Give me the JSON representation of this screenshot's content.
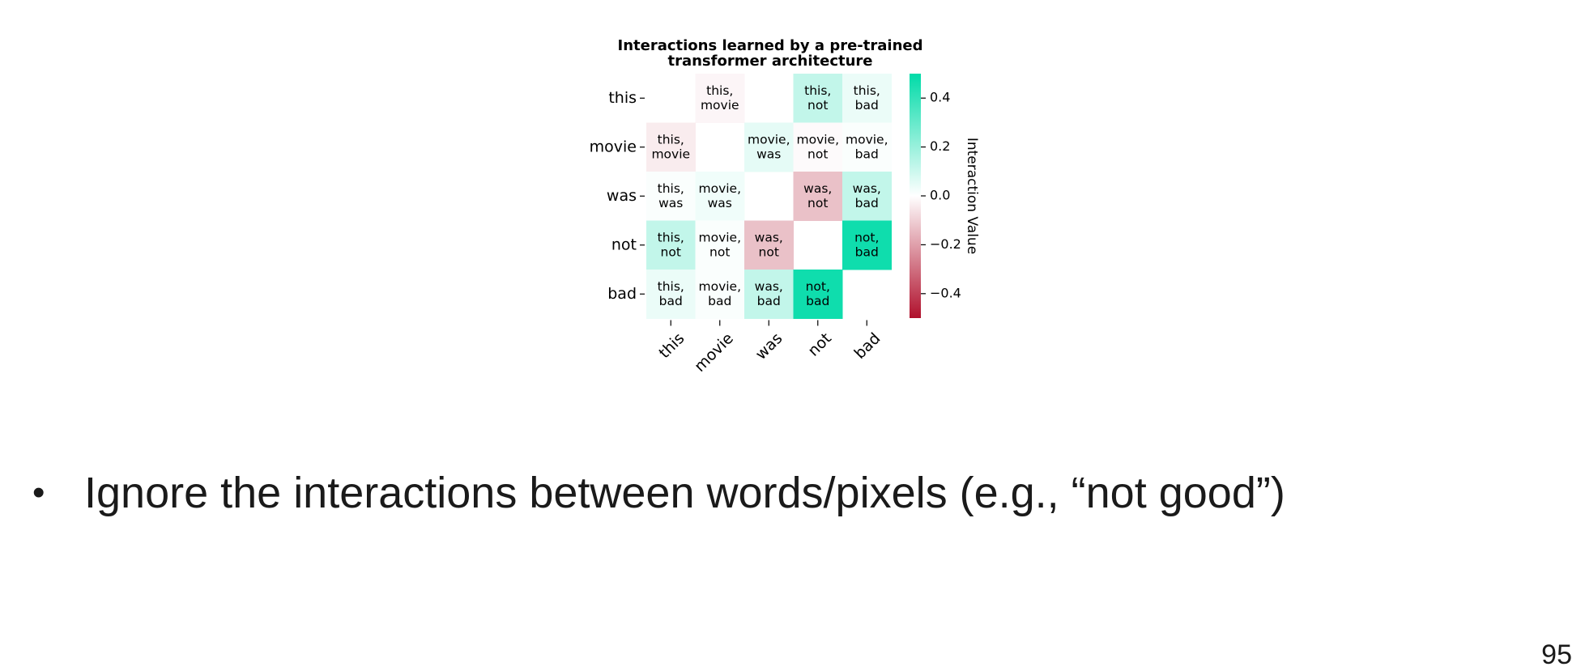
{
  "chart_data": {
    "type": "heatmap",
    "title": "Interactions learned by a pre-trained transformer architecture",
    "title_lines": [
      "Interactions learned by a pre-trained",
      "transformer architecture"
    ],
    "rows": [
      "this",
      "movie",
      "was",
      "not",
      "bad"
    ],
    "cols": [
      "this",
      "movie",
      "was",
      "not",
      "bad"
    ],
    "values": [
      [
        null,
        -0.02,
        null,
        0.12,
        0.04
      ],
      [
        -0.04,
        null,
        0.05,
        -0.01,
        0.01
      ],
      [
        0.01,
        0.03,
        null,
        -0.13,
        0.12
      ],
      [
        0.12,
        0.01,
        -0.13,
        null,
        0.47
      ],
      [
        0.04,
        0.01,
        0.12,
        0.47,
        null
      ]
    ],
    "cell_labels": [
      [
        "",
        "this,\nmovie",
        "",
        "this,\nnot",
        "this,\nbad"
      ],
      [
        "this,\nmovie",
        "",
        "movie,\nwas",
        "movie,\nnot",
        "movie,\nbad"
      ],
      [
        "this,\nwas",
        "movie,\nwas",
        "",
        "was,\nnot",
        "was,\nbad"
      ],
      [
        "this,\nnot",
        "movie,\nnot",
        "was,\nnot",
        "",
        "not,\nbad"
      ],
      [
        "this,\nbad",
        "movie,\nbad",
        "was,\nbad",
        "not,\nbad",
        ""
      ]
    ],
    "colorbar": {
      "label": "Interaction Value",
      "range": [
        -0.5,
        0.5
      ],
      "ticks": [
        0.4,
        0.2,
        0.0,
        -0.2,
        -0.4
      ],
      "tick_labels": [
        "0.4",
        "0.2",
        "0.0",
        "−0.2",
        "−0.4"
      ],
      "colors": {
        "negative": "#b0102c",
        "zero": "#ffffff",
        "positive": "#00dba8"
      }
    },
    "grid": false
  },
  "slide": {
    "bullet_symbol": "•",
    "bullet_text": "Ignore the interactions between words/pixels (e.g., “not good”)",
    "page_number": "95"
  }
}
